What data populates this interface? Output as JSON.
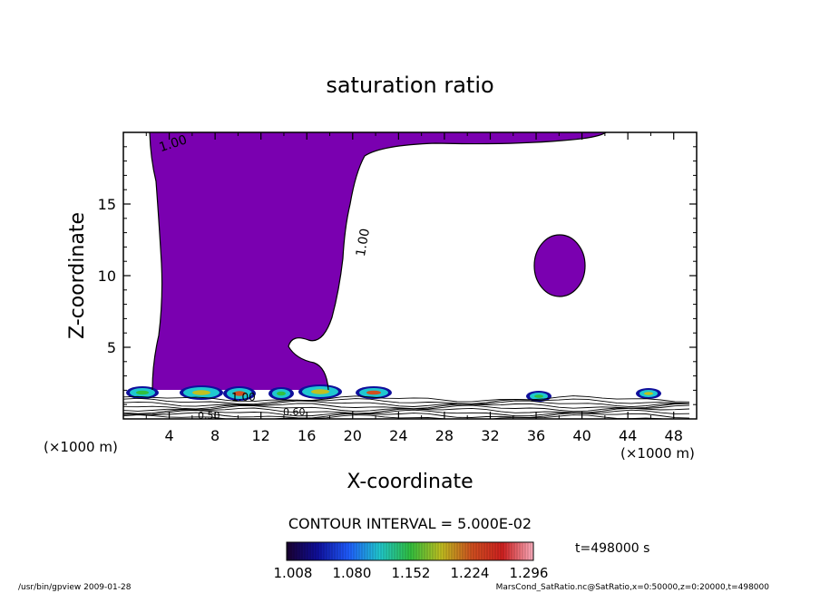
{
  "chart_data": {
    "type": "heatmap",
    "title": "saturation ratio",
    "xlabel": "X-coordinate",
    "ylabel": "Z-coordinate",
    "x_unit": "(×1000 m)",
    "x_unit_left": "(×1000 m)",
    "xlim": [
      0,
      50
    ],
    "ylim": [
      0,
      20
    ],
    "x_ticks": [
      4,
      8,
      12,
      16,
      20,
      24,
      28,
      32,
      36,
      40,
      44,
      48
    ],
    "y_ticks": [
      5,
      10,
      15
    ],
    "contour_labels": [
      "1.00",
      "1.00",
      "1.00",
      "0.50",
      "0.60"
    ],
    "contour_interval": "CONTOUR INTERVAL = 5.000E-02",
    "time_label": "t=498000 s",
    "colorbar": {
      "tick_labels": [
        "1.008",
        "1.080",
        "1.152",
        "1.224",
        "1.296"
      ],
      "colors": [
        "#1a0030",
        "#0f0f9c",
        "#1f5cff",
        "#20c8d0",
        "#30c040",
        "#c0c020",
        "#d05020",
        "#d02020",
        "#ffb0c0"
      ]
    },
    "fill_color": "#7a00b0",
    "footer_left": "/usr/bin/gpview  2009-01-28",
    "footer_right": "MarsCond_SatRatio.nc@SatRatio,x=0:50000,z=0:20000,t=498000"
  }
}
